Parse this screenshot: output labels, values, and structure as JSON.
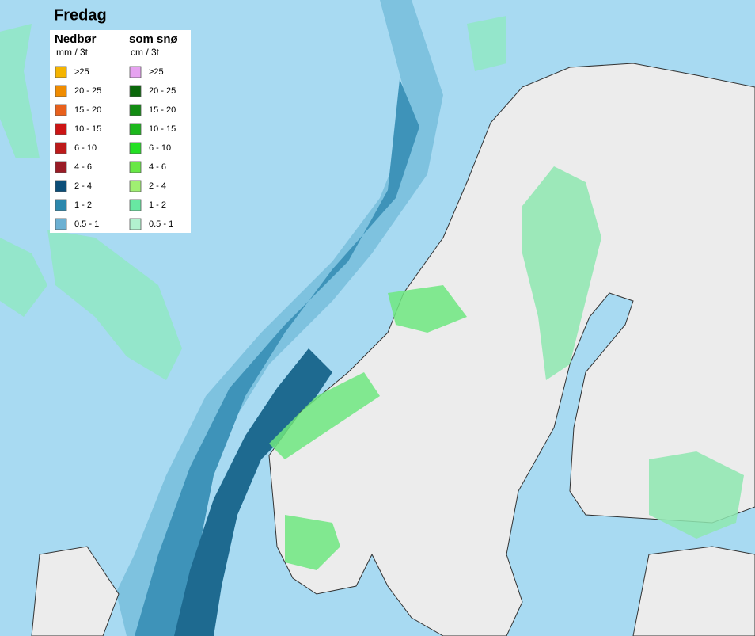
{
  "title": "Fredag",
  "legend": {
    "precip": {
      "title": "Nedbør",
      "unit": "mm / 3t",
      "items": [
        {
          "label": ">25",
          "color": "#f5b400"
        },
        {
          "label": "20 - 25",
          "color": "#f08c00"
        },
        {
          "label": "15 - 20",
          "color": "#e8601c"
        },
        {
          "label": "10 - 15",
          "color": "#cc1414"
        },
        {
          "label": "6 - 10",
          "color": "#bd1a1a"
        },
        {
          "label": "4 - 6",
          "color": "#9a1c26"
        },
        {
          "label": "2 - 4",
          "color": "#0c4e78"
        },
        {
          "label": "1 - 2",
          "color": "#2c88ad"
        },
        {
          "label": "0.5 - 1",
          "color": "#6cb0d2"
        }
      ]
    },
    "snow": {
      "title": "som snø",
      "unit": "cm / 3t",
      "items": [
        {
          "label": ">25",
          "color": "#e6a2f0"
        },
        {
          "label": "20 - 25",
          "color": "#0a680a"
        },
        {
          "label": "15 - 20",
          "color": "#128c12"
        },
        {
          "label": "10 - 15",
          "color": "#1cb81c"
        },
        {
          "label": "6 - 10",
          "color": "#24e024"
        },
        {
          "label": "4 - 6",
          "color": "#68e846"
        },
        {
          "label": "2 - 4",
          "color": "#a0f072"
        },
        {
          "label": "1 - 2",
          "color": "#68e8a2"
        },
        {
          "label": "0.5 - 1",
          "color": "#b2f2cf"
        }
      ]
    }
  }
}
